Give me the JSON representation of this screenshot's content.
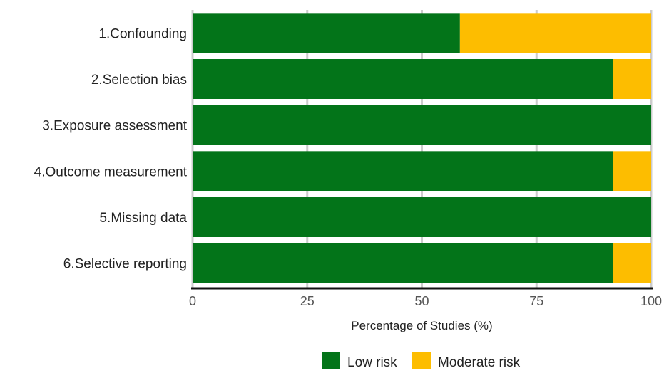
{
  "chart_data": {
    "type": "bar",
    "stacked": true,
    "orientation": "horizontal",
    "categories": [
      "1.Confounding",
      "2.Selection bias",
      "3.Exposure assessment",
      "4.Outcome measurement",
      "5.Missing data",
      "6.Selective reporting"
    ],
    "series": [
      {
        "name": "Low risk",
        "color": "#037419",
        "values": [
          58.3,
          91.7,
          100,
          91.7,
          100,
          91.7
        ]
      },
      {
        "name": "Moderate risk",
        "color": "#FDBD00",
        "values": [
          41.7,
          8.3,
          0,
          8.3,
          0,
          8.3
        ]
      }
    ],
    "xlabel": "Percentage of Studies (%)",
    "ylabel": "",
    "xlim": [
      0,
      100
    ],
    "xticks": [
      0,
      25,
      50,
      75,
      100
    ],
    "xtick_labels": [
      "0",
      "25",
      "50",
      "75",
      "100"
    ],
    "grid": true,
    "legend_position": "bottom"
  }
}
